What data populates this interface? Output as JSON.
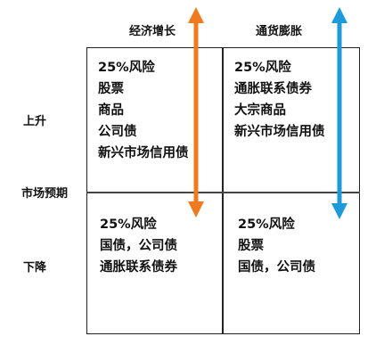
{
  "columns": {
    "economic_growth": "经济增长",
    "inflation": "通货膨胀"
  },
  "rows": {
    "rise": "上升",
    "market_expectation": "市场预期",
    "fall": "下降"
  },
  "quadrants": {
    "top_left": [
      "25%风险",
      "股票",
      "商品",
      "公司债",
      "新兴市场信用债"
    ],
    "top_right": [
      "25%风险",
      "通胀联系债券",
      "大宗商品",
      "新兴市场信用债"
    ],
    "bottom_left": [
      "25%风险",
      "国债，公司债",
      "通胀联系债券"
    ],
    "bottom_right": [
      "25%风险",
      "股票",
      "国债，公司债"
    ]
  },
  "colors": {
    "growth_arrow": "#f07a1e",
    "inflation_arrow": "#1d9ad9",
    "grid": "#222222"
  }
}
